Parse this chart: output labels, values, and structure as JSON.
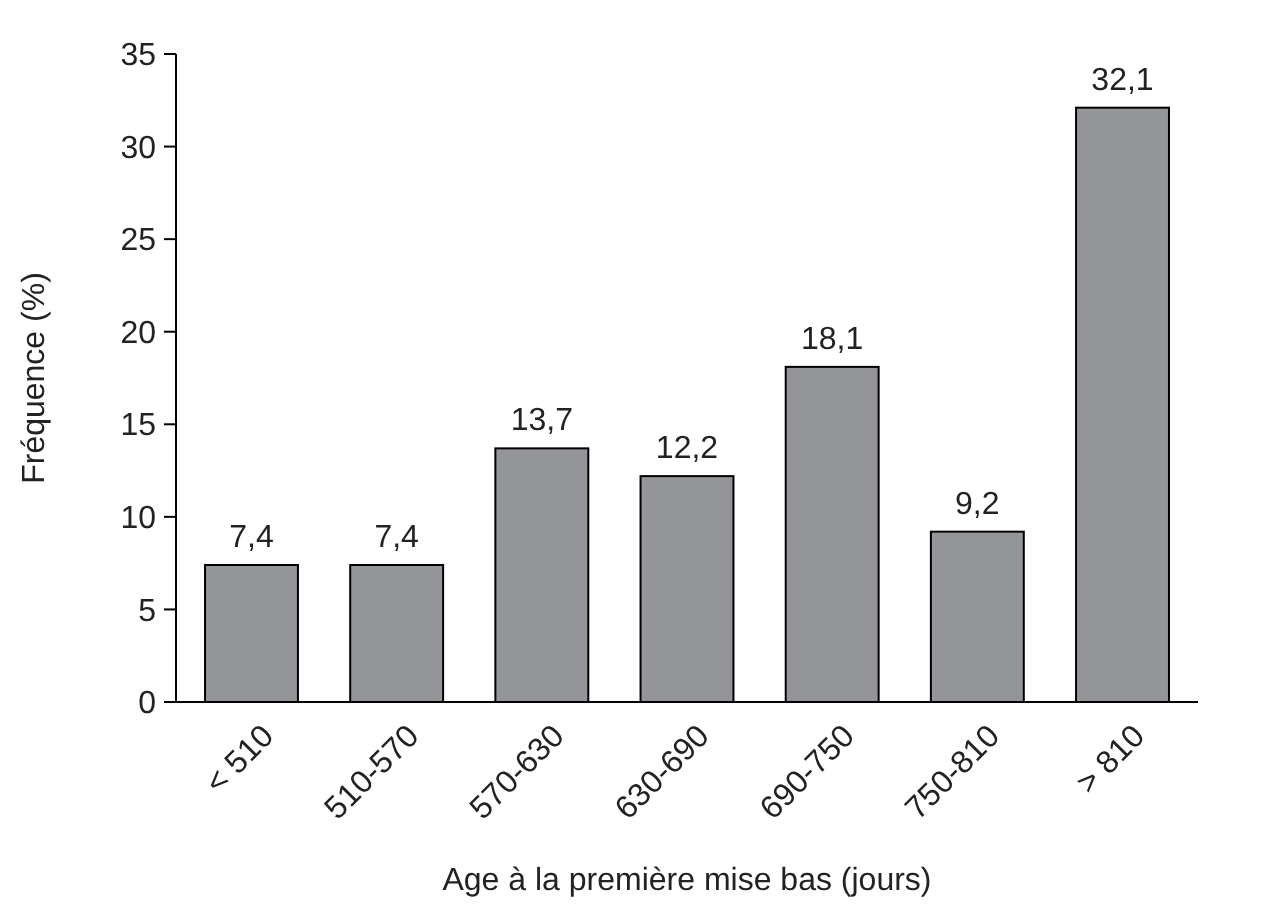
{
  "chart_data": {
    "type": "bar",
    "xlabel": "Age à la première mise bas (jours)",
    "ylabel": "Fréquence (%)",
    "categories": [
      "< 510",
      "510-570",
      "570-630",
      "630-690",
      "690-750",
      "750-810",
      "> 810"
    ],
    "values": [
      7.4,
      7.4,
      13.7,
      12.2,
      18.1,
      9.2,
      32.1
    ],
    "value_labels": [
      "7,4",
      "7,4",
      "13,7",
      "12,2",
      "18,1",
      "9,2",
      "32,1"
    ],
    "color": "#939598",
    "ylim": [
      0,
      35
    ],
    "yticks": [
      0,
      5,
      10,
      15,
      20,
      25,
      30,
      35
    ],
    "grid": false
  }
}
